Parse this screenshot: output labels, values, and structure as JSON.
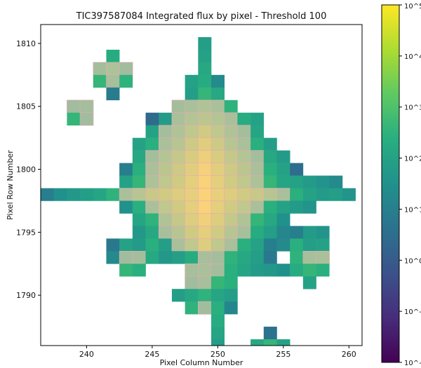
{
  "chart_data": {
    "type": "heatmap",
    "title": "TIC397587084 Integrated flux by pixel - Threshold 100",
    "xlabel": "Pixel Column Number",
    "ylabel": "Pixel Row Number",
    "xlim": [
      236.5,
      261
    ],
    "ylim": [
      1786,
      1811.5
    ],
    "xticks": [
      240,
      245,
      250,
      255,
      260
    ],
    "yticks": [
      1790,
      1795,
      1800,
      1805,
      1810
    ],
    "colorbar": {
      "scale": "log",
      "colormap": "viridis",
      "min_exp": -2,
      "max_exp": 5,
      "tick_labels": [
        "10^5",
        "10^4",
        "10^3",
        "10^2",
        "10^1",
        "10^0",
        "10^-1",
        "10^-2"
      ]
    },
    "mask_color": "#f5c0c0",
    "threshold": 100,
    "rows": [
      {
        "y": 1810,
        "cells": [
          [
            249,
            1.9
          ]
        ]
      },
      {
        "y": 1809,
        "cells": [
          [
            242,
            2.3
          ],
          [
            249,
            2.0
          ]
        ]
      },
      {
        "y": 1808,
        "cells": [
          [
            241,
            2.8
          ],
          [
            242,
            3.1
          ],
          [
            243,
            2.7
          ],
          [
            249,
            2.2
          ]
        ]
      },
      {
        "y": 1807,
        "cells": [
          [
            241,
            2.6
          ],
          [
            242,
            2.9
          ],
          [
            243,
            2.5
          ],
          [
            248,
            2.0
          ],
          [
            249,
            2.3
          ],
          [
            250,
            1.3
          ]
        ]
      },
      {
        "y": 1806,
        "cells": [
          [
            242,
            0.9
          ],
          [
            248,
            1.9
          ],
          [
            249,
            2.6
          ],
          [
            250,
            2.2
          ]
        ]
      },
      {
        "y": 1805,
        "cells": [
          [
            239,
            2.7
          ],
          [
            240,
            2.8
          ],
          [
            247,
            2.8
          ],
          [
            248,
            3.0
          ],
          [
            249,
            3.2
          ],
          [
            250,
            3.0
          ],
          [
            251,
            2.5
          ]
        ]
      },
      {
        "y": 1804,
        "cells": [
          [
            239,
            2.6
          ],
          [
            240,
            2.7
          ],
          [
            245,
            0.4
          ],
          [
            246,
            1.8
          ],
          [
            247,
            3.0
          ],
          [
            248,
            3.3
          ],
          [
            249,
            3.5
          ],
          [
            250,
            3.3
          ],
          [
            251,
            3.0
          ],
          [
            252,
            2.3
          ],
          [
            253,
            2.0
          ]
        ]
      },
      {
        "y": 1803,
        "cells": [
          [
            245,
            2.0
          ],
          [
            246,
            2.8
          ],
          [
            247,
            3.2
          ],
          [
            248,
            3.6
          ],
          [
            249,
            4.0
          ],
          [
            250,
            3.6
          ],
          [
            251,
            3.2
          ],
          [
            252,
            2.8
          ],
          [
            253,
            2.1
          ]
        ]
      },
      {
        "y": 1802,
        "cells": [
          [
            244,
            2.0
          ],
          [
            245,
            2.4
          ],
          [
            246,
            3.0
          ],
          [
            247,
            3.4
          ],
          [
            248,
            3.9
          ],
          [
            249,
            4.4
          ],
          [
            250,
            3.9
          ],
          [
            251,
            3.4
          ],
          [
            252,
            3.0
          ],
          [
            253,
            2.4
          ],
          [
            254,
            1.9
          ]
        ]
      },
      {
        "y": 1801,
        "cells": [
          [
            244,
            2.2
          ],
          [
            245,
            2.8
          ],
          [
            246,
            3.3
          ],
          [
            247,
            3.7
          ],
          [
            248,
            4.2
          ],
          [
            249,
            4.7
          ],
          [
            250,
            4.2
          ],
          [
            251,
            3.7
          ],
          [
            252,
            3.3
          ],
          [
            253,
            2.8
          ],
          [
            254,
            2.2
          ],
          [
            255,
            1.8
          ]
        ]
      },
      {
        "y": 1800,
        "cells": [
          [
            243,
            1.0
          ],
          [
            244,
            2.4
          ],
          [
            245,
            3.0
          ],
          [
            246,
            3.5
          ],
          [
            247,
            3.9
          ],
          [
            248,
            4.4
          ],
          [
            249,
            4.9
          ],
          [
            250,
            4.4
          ],
          [
            251,
            3.9
          ],
          [
            252,
            3.5
          ],
          [
            253,
            3.0
          ],
          [
            254,
            2.4
          ],
          [
            255,
            2.0
          ],
          [
            256,
            0.5
          ]
        ]
      },
      {
        "y": 1799,
        "cells": [
          [
            243,
            2.0
          ],
          [
            244,
            2.6
          ],
          [
            245,
            3.1
          ],
          [
            246,
            3.6
          ],
          [
            247,
            4.0
          ],
          [
            248,
            4.5
          ],
          [
            249,
            5.0
          ],
          [
            250,
            4.5
          ],
          [
            251,
            4.0
          ],
          [
            252,
            3.6
          ],
          [
            253,
            3.1
          ],
          [
            254,
            2.6
          ],
          [
            255,
            2.1
          ],
          [
            256,
            2.0
          ],
          [
            257,
            1.8
          ],
          [
            258,
            1.6
          ],
          [
            259,
            1.3
          ]
        ]
      },
      {
        "y": 1798,
        "cells": [
          [
            237,
            1.0
          ],
          [
            238,
            1.5
          ],
          [
            239,
            1.7
          ],
          [
            240,
            1.9
          ],
          [
            241,
            2.1
          ],
          [
            242,
            2.5
          ],
          [
            243,
            3.0
          ],
          [
            244,
            3.4
          ],
          [
            245,
            3.8
          ],
          [
            246,
            4.0
          ],
          [
            247,
            4.3
          ],
          [
            248,
            4.6
          ],
          [
            249,
            5.0
          ],
          [
            250,
            4.6
          ],
          [
            251,
            4.3
          ],
          [
            252,
            4.0
          ],
          [
            253,
            3.8
          ],
          [
            254,
            3.4
          ],
          [
            255,
            3.0
          ],
          [
            256,
            2.4
          ],
          [
            257,
            2.0
          ],
          [
            258,
            1.8
          ],
          [
            259,
            1.9
          ],
          [
            260,
            1.6
          ]
        ]
      },
      {
        "y": 1797,
        "cells": [
          [
            243,
            1.5
          ],
          [
            244,
            2.4
          ],
          [
            245,
            3.0
          ],
          [
            246,
            3.6
          ],
          [
            247,
            4.0
          ],
          [
            248,
            4.5
          ],
          [
            249,
            5.0
          ],
          [
            250,
            4.5
          ],
          [
            251,
            4.0
          ],
          [
            252,
            3.6
          ],
          [
            253,
            3.0
          ],
          [
            254,
            2.4
          ],
          [
            255,
            2.0
          ],
          [
            256,
            1.8
          ],
          [
            257,
            1.6
          ]
        ]
      },
      {
        "y": 1796,
        "cells": [
          [
            244,
            2.1
          ],
          [
            245,
            2.5
          ],
          [
            246,
            3.2
          ],
          [
            247,
            3.7
          ],
          [
            248,
            4.3
          ],
          [
            249,
            4.8
          ],
          [
            250,
            4.3
          ],
          [
            251,
            3.7
          ],
          [
            252,
            3.2
          ],
          [
            253,
            2.6
          ],
          [
            254,
            2.2
          ],
          [
            255,
            1.5
          ]
        ]
      },
      {
        "y": 1795,
        "cells": [
          [
            244,
            1.7
          ],
          [
            245,
            2.2
          ],
          [
            246,
            2.9
          ],
          [
            247,
            3.4
          ],
          [
            248,
            4.0
          ],
          [
            249,
            4.5
          ],
          [
            250,
            4.0
          ],
          [
            251,
            3.4
          ],
          [
            252,
            2.9
          ],
          [
            253,
            2.3
          ],
          [
            254,
            1.9
          ],
          [
            255,
            1.2
          ],
          [
            256,
            1.0
          ],
          [
            257,
            1.8
          ],
          [
            258,
            1.6
          ]
        ]
      },
      {
        "y": 1794,
        "cells": [
          [
            242,
            0.8
          ],
          [
            243,
            2.0
          ],
          [
            244,
            1.8
          ],
          [
            245,
            2.4
          ],
          [
            246,
            1.9
          ],
          [
            247,
            3.0
          ],
          [
            248,
            3.6
          ],
          [
            249,
            4.3
          ],
          [
            250,
            3.6
          ],
          [
            251,
            3.0
          ],
          [
            252,
            2.4
          ],
          [
            253,
            2.0
          ],
          [
            254,
            1.0
          ],
          [
            255,
            1.3
          ],
          [
            256,
            2.4
          ],
          [
            257,
            1.9
          ],
          [
            258,
            2.0
          ]
        ]
      },
      {
        "y": 1793,
        "cells": [
          [
            242,
            1.3
          ],
          [
            243,
            2.7
          ],
          [
            244,
            2.8
          ],
          [
            245,
            2.2
          ],
          [
            246,
            1.7
          ],
          [
            247,
            1.9
          ],
          [
            248,
            2.3
          ],
          [
            249,
            2.9
          ],
          [
            250,
            2.8
          ],
          [
            251,
            2.5
          ],
          [
            252,
            2.2
          ],
          [
            253,
            1.9
          ],
          [
            254,
            0.8
          ],
          [
            256,
            2.5
          ],
          [
            257,
            2.9
          ],
          [
            258,
            3.0
          ]
        ]
      },
      {
        "y": 1792,
        "cells": [
          [
            243,
            2.6
          ],
          [
            244,
            2.4
          ],
          [
            248,
            2.9
          ],
          [
            249,
            3.0
          ],
          [
            250,
            2.8
          ],
          [
            251,
            2.4
          ],
          [
            252,
            2.1
          ],
          [
            253,
            1.8
          ],
          [
            254,
            1.7
          ],
          [
            255,
            1.5
          ],
          [
            256,
            2.3
          ],
          [
            257,
            2.6
          ],
          [
            258,
            2.4
          ]
        ]
      },
      {
        "y": 1791,
        "cells": [
          [
            248,
            2.7
          ],
          [
            249,
            2.9
          ],
          [
            250,
            2.6
          ],
          [
            251,
            2.4
          ],
          [
            257,
            2.0
          ]
        ]
      },
      {
        "y": 1790,
        "cells": [
          [
            247,
            1.9
          ],
          [
            248,
            2.2
          ],
          [
            249,
            2.5
          ],
          [
            250,
            2.1
          ],
          [
            251,
            1.9
          ]
        ]
      },
      {
        "y": 1789,
        "cells": [
          [
            248,
            2.5
          ],
          [
            249,
            2.7
          ],
          [
            250,
            2.4
          ],
          [
            251,
            1.2
          ]
        ]
      },
      {
        "y": 1788,
        "cells": [
          [
            250,
            2.3
          ]
        ]
      },
      {
        "y": 1787,
        "cells": [
          [
            250,
            2.1
          ],
          [
            254,
            0.6
          ]
        ]
      },
      {
        "y": 1786,
        "cells": [
          [
            250,
            1.9
          ],
          [
            253,
            2.2
          ],
          [
            254,
            2.6
          ],
          [
            255,
            2.0
          ]
        ]
      }
    ]
  }
}
